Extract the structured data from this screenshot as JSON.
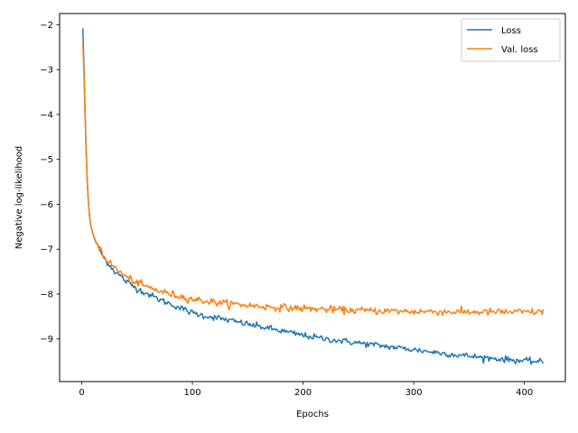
{
  "chart_data": {
    "type": "line",
    "title": "",
    "xlabel": "Epochs",
    "ylabel": "Negative log-likelihood",
    "xlim": [
      -20,
      437
    ],
    "ylim": [
      -9.95,
      -1.75
    ],
    "xticks": [
      0,
      100,
      200,
      300,
      400
    ],
    "xtick_labels": [
      "0",
      "100",
      "200",
      "300",
      "400"
    ],
    "yticks": [
      -2,
      -3,
      -4,
      -5,
      -6,
      -7,
      -8,
      -9
    ],
    "ytick_labels": [
      "−2",
      "−3",
      "−4",
      "−5",
      "−6",
      "−7",
      "−8",
      "−9"
    ],
    "grid": false,
    "legend": {
      "position": "upper right",
      "entries": [
        "Loss",
        "Val. loss"
      ]
    },
    "series": [
      {
        "name": "Loss",
        "color": "#1f77b4",
        "points": [
          [
            1,
            -2.08
          ],
          [
            2,
            -2.9
          ],
          [
            3,
            -3.9
          ],
          [
            4,
            -4.8
          ],
          [
            5,
            -5.5
          ],
          [
            6,
            -5.95
          ],
          [
            7,
            -6.25
          ],
          [
            8,
            -6.45
          ],
          [
            10,
            -6.65
          ],
          [
            12,
            -6.8
          ],
          [
            15,
            -6.95
          ],
          [
            18,
            -7.1
          ],
          [
            20,
            -7.2
          ],
          [
            25,
            -7.35
          ],
          [
            30,
            -7.5
          ],
          [
            35,
            -7.6
          ],
          [
            40,
            -7.72
          ],
          [
            50,
            -7.88
          ],
          [
            60,
            -8.0
          ],
          [
            70,
            -8.12
          ],
          [
            80,
            -8.22
          ],
          [
            90,
            -8.32
          ],
          [
            100,
            -8.42
          ],
          [
            110,
            -8.48
          ],
          [
            120,
            -8.52
          ],
          [
            130,
            -8.57
          ],
          [
            140,
            -8.62
          ],
          [
            150,
            -8.67
          ],
          [
            160,
            -8.72
          ],
          [
            170,
            -8.77
          ],
          [
            180,
            -8.82
          ],
          [
            190,
            -8.87
          ],
          [
            200,
            -8.92
          ],
          [
            210,
            -8.96
          ],
          [
            220,
            -9.0
          ],
          [
            230,
            -9.03
          ],
          [
            240,
            -9.06
          ],
          [
            250,
            -9.09
          ],
          [
            260,
            -9.12
          ],
          [
            270,
            -9.15
          ],
          [
            280,
            -9.18
          ],
          [
            290,
            -9.21
          ],
          [
            300,
            -9.24
          ],
          [
            310,
            -9.27
          ],
          [
            320,
            -9.3
          ],
          [
            330,
            -9.33
          ],
          [
            340,
            -9.36
          ],
          [
            350,
            -9.38
          ],
          [
            360,
            -9.41
          ],
          [
            370,
            -9.43
          ],
          [
            380,
            -9.45
          ],
          [
            390,
            -9.47
          ],
          [
            400,
            -9.49
          ],
          [
            410,
            -9.5
          ],
          [
            417,
            -9.52
          ]
        ]
      },
      {
        "name": "Val. loss",
        "color": "#ff7f0e",
        "points": [
          [
            1,
            -2.4
          ],
          [
            2,
            -3.1
          ],
          [
            3,
            -4.0
          ],
          [
            4,
            -4.85
          ],
          [
            5,
            -5.5
          ],
          [
            6,
            -5.95
          ],
          [
            7,
            -6.25
          ],
          [
            8,
            -6.45
          ],
          [
            10,
            -6.65
          ],
          [
            12,
            -6.78
          ],
          [
            15,
            -6.92
          ],
          [
            18,
            -7.05
          ],
          [
            20,
            -7.15
          ],
          [
            25,
            -7.3
          ],
          [
            30,
            -7.42
          ],
          [
            35,
            -7.52
          ],
          [
            40,
            -7.62
          ],
          [
            50,
            -7.75
          ],
          [
            60,
            -7.85
          ],
          [
            70,
            -7.93
          ],
          [
            80,
            -8.0
          ],
          [
            90,
            -8.06
          ],
          [
            100,
            -8.11
          ],
          [
            110,
            -8.15
          ],
          [
            120,
            -8.18
          ],
          [
            130,
            -8.21
          ],
          [
            140,
            -8.23
          ],
          [
            150,
            -8.25
          ],
          [
            160,
            -8.27
          ],
          [
            170,
            -8.29
          ],
          [
            180,
            -8.3
          ],
          [
            190,
            -8.31
          ],
          [
            200,
            -8.32
          ],
          [
            220,
            -8.34
          ],
          [
            240,
            -8.36
          ],
          [
            260,
            -8.37
          ],
          [
            280,
            -8.38
          ],
          [
            300,
            -8.39
          ],
          [
            320,
            -8.39
          ],
          [
            340,
            -8.4
          ],
          [
            360,
            -8.4
          ],
          [
            380,
            -8.4
          ],
          [
            400,
            -8.4
          ],
          [
            417,
            -8.4
          ]
        ]
      }
    ]
  }
}
